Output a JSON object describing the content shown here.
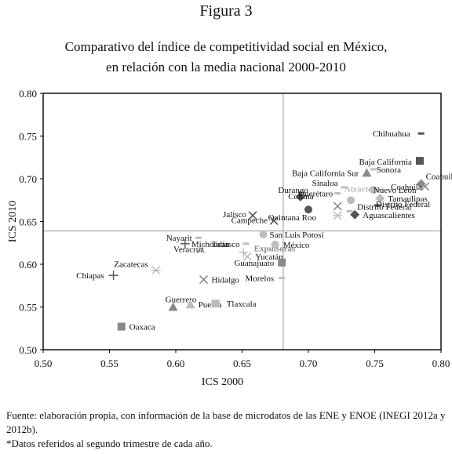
{
  "figure_label": "Figura 3",
  "title_line1": "Comparativo del índice de competitividad social en México,",
  "title_line2": "en relación con la media nacional 2000-2010",
  "footer_source": "Fuente: elaboración propia, con información de la base de microdatos de las ENE y ENOE (INEGI 2012a y 2012b).",
  "footer_note": "*Datos referidos al segundo trimestre de cada año.",
  "colors": {
    "dark": "#555555",
    "mid": "#8a8a8a",
    "light": "#bdbdbd",
    "axis": "#000000",
    "refline": "#aaaaaa"
  },
  "chart_data": {
    "type": "scatter",
    "xlabel": "ICS 2000",
    "ylabel": "ICS 2010",
    "xlim": [
      0.5,
      0.8
    ],
    "ylim": [
      0.5,
      0.8
    ],
    "xticks": [
      "0.50",
      "0.55",
      "0.60",
      "0.65",
      "0.70",
      "0.75",
      "0.80"
    ],
    "yticks": [
      "0.50",
      "0.55",
      "0.60",
      "0.65",
      "0.70",
      "0.75",
      "0.80"
    ],
    "reference_lines": {
      "x": 0.681,
      "y": 0.639
    },
    "region_labels": [
      {
        "text": "Expulsoras",
        "x": 0.659,
        "y": 0.615,
        "anchor": "start",
        "color": "mid"
      },
      {
        "text": "Atractoras",
        "x": 0.727,
        "y": 0.685,
        "anchor": "start",
        "color": "light"
      }
    ],
    "points": [
      {
        "label": "Chihuahua",
        "x": 0.785,
        "y": 0.753,
        "marker": "dash",
        "color": "dark",
        "label_anchor": "end",
        "label_dx": -14,
        "label_dy": 4
      },
      {
        "label": "Baja California",
        "x": 0.784,
        "y": 0.721,
        "marker": "square",
        "color": "dark",
        "label_anchor": "end",
        "label_dx": -10,
        "label_dy": 5
      },
      {
        "label": "Baja California Sur",
        "x": 0.744,
        "y": 0.707,
        "marker": "triangle",
        "color": "mid",
        "label_anchor": "end",
        "label_dx": -10,
        "label_dy": 4
      },
      {
        "label": "Sonora",
        "x": 0.749,
        "y": 0.711,
        "marker": "dash",
        "color": "light",
        "label_anchor": "start",
        "label_dx": 4,
        "label_dy": 4
      },
      {
        "label": "Coahuila",
        "x": 0.785,
        "y": 0.694,
        "marker": "diamond",
        "color": "mid",
        "label_anchor": "start",
        "label_dx": 6,
        "label_dy": -6
      },
      {
        "label": "Coahuila",
        "x": 0.788,
        "y": 0.691,
        "marker": "x",
        "color": "mid",
        "label_anchor": "end",
        "label_dx": -4,
        "label_dy": 4
      },
      {
        "label": "Nuevo León",
        "x": 0.749,
        "y": 0.687,
        "marker": "circle",
        "color": "light",
        "label_anchor": "start",
        "label_dx": 0,
        "label_dy": 4
      },
      {
        "label": "Sinaloa",
        "x": 0.727,
        "y": 0.69,
        "marker": "dash",
        "color": "light",
        "label_anchor": "end",
        "label_dx": -8,
        "label_dy": -2
      },
      {
        "label": "Durango",
        "x": 0.694,
        "y": 0.679,
        "marker": "diamond",
        "color": "dark",
        "label_anchor": "end",
        "label_dx": 10,
        "label_dy": -5
      },
      {
        "label": "Querétaro",
        "x": 0.722,
        "y": 0.683,
        "marker": "dash",
        "color": "light",
        "label_anchor": "end",
        "label_dx": -6,
        "label_dy": 4
      },
      {
        "label": "Colima",
        "x": 0.698,
        "y": 0.68,
        "marker": "dash",
        "color": "mid",
        "label_anchor": "end",
        "label_dx": 10,
        "label_dy": 4
      },
      {
        "label": "Tamaulipas",
        "x": 0.754,
        "y": 0.677,
        "marker": "diamond",
        "color": "light",
        "label_anchor": "start",
        "label_dx": 10,
        "label_dy": 4
      },
      {
        "label": "Distrito Federal",
        "x": 0.732,
        "y": 0.675,
        "marker": "circle",
        "color": "light",
        "label_anchor": "start",
        "label_dx": 8,
        "label_dy": 12
      },
      {
        "label": "Distrito Federal",
        "x": 0.752,
        "y": 0.669,
        "marker": "dash",
        "color": "dark",
        "label_anchor": "start",
        "label_dx": -2,
        "label_dy": 2
      },
      {
        "label": "",
        "x": 0.722,
        "y": 0.668,
        "marker": "x",
        "color": "mid",
        "label_anchor": "start",
        "label_dx": 0,
        "label_dy": 0
      },
      {
        "label": "Aguascalientes",
        "x": 0.735,
        "y": 0.658,
        "marker": "diamond",
        "color": "dark",
        "label_anchor": "start",
        "label_dx": 10,
        "label_dy": 4
      },
      {
        "label": "",
        "x": 0.722,
        "y": 0.657,
        "marker": "asterisk",
        "color": "light",
        "label_anchor": "start",
        "label_dx": 0,
        "label_dy": 0
      },
      {
        "label": "",
        "x": 0.731,
        "y": 0.662,
        "marker": "dash",
        "color": "light",
        "label_anchor": "start",
        "label_dx": 0,
        "label_dy": 0
      },
      {
        "label": "Quintana Roo",
        "x": 0.7,
        "y": 0.664,
        "marker": "circle",
        "color": "dark",
        "label_anchor": "end",
        "label_dx": 10,
        "label_dy": 14
      },
      {
        "label": "Jalisco",
        "x": 0.658,
        "y": 0.657,
        "marker": "x",
        "color": "dark",
        "label_anchor": "end",
        "label_dx": -8,
        "label_dy": 2
      },
      {
        "label": "Campeche",
        "x": 0.674,
        "y": 0.651,
        "marker": "x",
        "color": "dark",
        "label_anchor": "end",
        "label_dx": -8,
        "label_dy": 3
      },
      {
        "label": "San Luis Potosí",
        "x": 0.666,
        "y": 0.635,
        "marker": "circle",
        "color": "light",
        "label_anchor": "start",
        "label_dx": 8,
        "label_dy": 4
      },
      {
        "label": "México",
        "x": 0.675,
        "y": 0.623,
        "marker": "circle",
        "color": "light",
        "label_anchor": "start",
        "label_dx": 10,
        "label_dy": 4
      },
      {
        "label": "Nayarit",
        "x": 0.617,
        "y": 0.631,
        "marker": "dash",
        "color": "light",
        "label_anchor": "end",
        "label_dx": -8,
        "label_dy": 4
      },
      {
        "label": "Michoacán",
        "x": 0.607,
        "y": 0.624,
        "marker": "plus",
        "color": "dark",
        "label_anchor": "start",
        "label_dx": 8,
        "label_dy": 4
      },
      {
        "label": "Veracruz",
        "x": 0.619,
        "y": 0.618,
        "marker": "x",
        "color": "light",
        "label_anchor": "end",
        "label_dx": 4,
        "label_dy": 4
      },
      {
        "label": "Tabasco",
        "x": 0.653,
        "y": 0.624,
        "marker": "dash",
        "color": "light",
        "label_anchor": "end",
        "label_dx": -8,
        "label_dy": 4
      },
      {
        "label": "",
        "x": 0.651,
        "y": 0.614,
        "marker": "plus",
        "color": "light",
        "label_anchor": "start",
        "label_dx": 0,
        "label_dy": 0
      },
      {
        "label": "Yucatán",
        "x": 0.654,
        "y": 0.609,
        "marker": "x",
        "color": "light",
        "label_anchor": "start",
        "label_dx": 10,
        "label_dy": 4
      },
      {
        "label": "Guanajuato",
        "x": 0.68,
        "y": 0.602,
        "marker": "square",
        "color": "mid",
        "label_anchor": "end",
        "label_dx": -10,
        "label_dy": 4
      },
      {
        "label": "Zacatecas",
        "x": 0.585,
        "y": 0.593,
        "marker": "asterisk",
        "color": "light",
        "label_anchor": "end",
        "label_dx": -10,
        "label_dy": -4
      },
      {
        "label": "Chiapas",
        "x": 0.553,
        "y": 0.587,
        "marker": "plus",
        "color": "dark",
        "label_anchor": "end",
        "label_dx": -12,
        "label_dy": 4
      },
      {
        "label": "Hidalgo",
        "x": 0.621,
        "y": 0.582,
        "marker": "x",
        "color": "mid",
        "label_anchor": "start",
        "label_dx": 10,
        "label_dy": 4
      },
      {
        "label": "Morelos",
        "x": 0.68,
        "y": 0.584,
        "marker": "dash",
        "color": "light",
        "label_anchor": "end",
        "label_dx": -10,
        "label_dy": 4
      },
      {
        "label": "Guerrero",
        "x": 0.598,
        "y": 0.55,
        "marker": "triangle",
        "color": "mid",
        "label_anchor": "start",
        "label_dx": -10,
        "label_dy": -6
      },
      {
        "label": "Puebla",
        "x": 0.611,
        "y": 0.553,
        "marker": "triangle",
        "color": "light",
        "label_anchor": "start",
        "label_dx": 10,
        "label_dy": 4
      },
      {
        "label": "Tlaxcala",
        "x": 0.63,
        "y": 0.554,
        "marker": "square",
        "color": "light",
        "label_anchor": "start",
        "label_dx": 14,
        "label_dy": 4
      },
      {
        "label": "Oaxaca",
        "x": 0.559,
        "y": 0.527,
        "marker": "square",
        "color": "mid",
        "label_anchor": "start",
        "label_dx": 10,
        "label_dy": 4
      }
    ]
  }
}
